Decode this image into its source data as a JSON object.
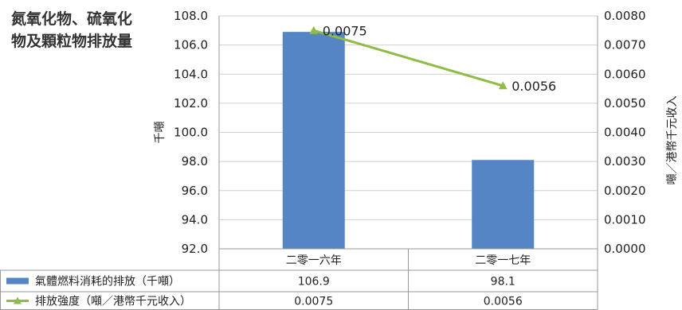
{
  "chart_data": {
    "type": "bar",
    "title": "氮氧化物、硫氧化物及顆粒物排放量",
    "categories": [
      "二零一六年",
      "二零一七年"
    ],
    "series": [
      {
        "name": "氣體燃料消耗的排放（千噸）",
        "type": "bar",
        "axis": "left",
        "values": [
          106.9,
          98.1
        ],
        "color": "#5585c5"
      },
      {
        "name": "排放強度（噸／港幣千元收入）",
        "type": "line",
        "axis": "right",
        "values": [
          0.0075,
          0.0056
        ],
        "color": "#8fbc45"
      }
    ],
    "ylabel": "千噸",
    "ylabel_right": "噸／港幣千元收入",
    "ylim": [
      92.0,
      108.0
    ],
    "ylim_right": [
      0.0,
      0.008
    ],
    "yticks": [
      "108.0",
      "106.0",
      "104.0",
      "102.0",
      "100.0",
      "98.0",
      "96.0",
      "94.0",
      "92.0"
    ],
    "yticks_right": [
      "0.0080",
      "0.0070",
      "0.0060",
      "0.0050",
      "0.0040",
      "0.0030",
      "0.0020",
      "0.0010",
      "0.0000"
    ],
    "data_labels": [
      "0.0075",
      "0.0056"
    ],
    "table": {
      "rows": [
        {
          "legend": "氣體燃料消耗的排放（千噸）",
          "values": [
            "106.9",
            "98.1"
          ]
        },
        {
          "legend": "排放強度（噸／港幣千元收入）",
          "values": [
            "0.0075",
            "0.0056"
          ]
        }
      ]
    },
    "grid": true,
    "legend": "bottom-table"
  }
}
